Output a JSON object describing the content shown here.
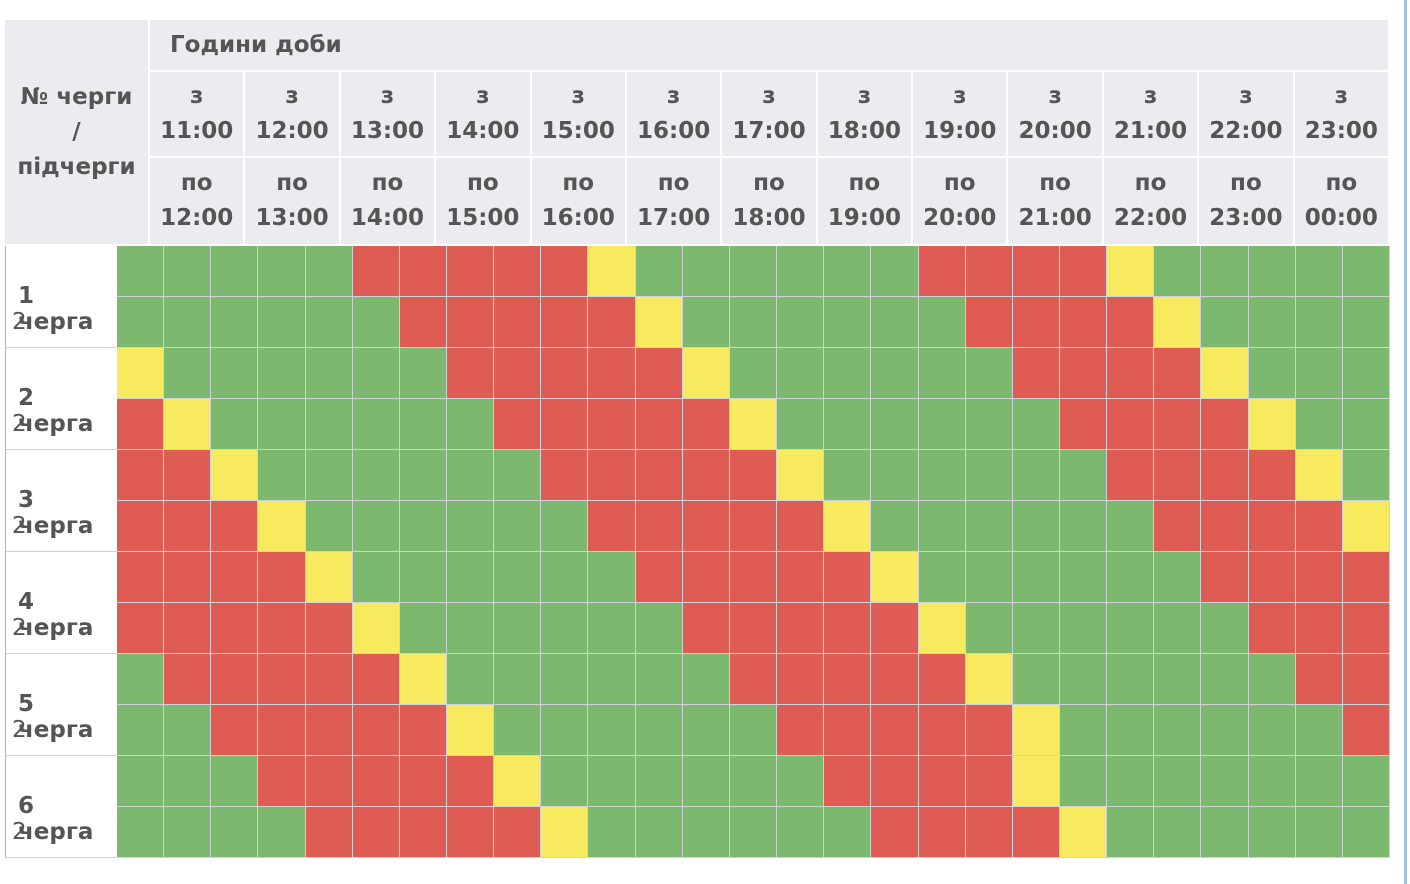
{
  "header": {
    "corner": [
      "№ черги",
      "/",
      "підчерги"
    ],
    "hours_title": "Години доби",
    "from_prefix": "з",
    "from_times": [
      "11:00",
      "12:00",
      "13:00",
      "14:00",
      "15:00",
      "16:00",
      "17:00",
      "18:00",
      "19:00",
      "20:00",
      "21:00",
      "22:00",
      "23:00"
    ],
    "to_prefix": "по",
    "to_times": [
      "12:00",
      "13:00",
      "14:00",
      "15:00",
      "16:00",
      "17:00",
      "18:00",
      "19:00",
      "20:00",
      "21:00",
      "22:00",
      "23:00",
      "00:00"
    ]
  },
  "status_colors": {
    "G": "#7cb86e",
    "R": "#df5c54",
    "Y": "#f8ea5f"
  },
  "queues": [
    {
      "label": "1 черга",
      "sublabel": "2",
      "rows": [
        "GGGGGRRRRRYGGGGGGRRRRYGGGGG",
        "GGGGGGRRRRRYGGGGGGRRRRYGGGG"
      ]
    },
    {
      "label": "2 черга",
      "sublabel": "2",
      "rows": [
        "YGGGGGGRRRRRYGGGGGGRRRRYGGG",
        "RYGGGGGGRRRRRYGGGGGGRRRRYGG"
      ]
    },
    {
      "label": "3 черга",
      "sublabel": "2",
      "rows": [
        "RRYGGGGGGRRRRRYGGGGGGRRRRYG",
        "RRRYGGGGGGRRRRRYGGGGGGRRRRY"
      ]
    },
    {
      "label": "4 черга",
      "sublabel": "2",
      "rows": [
        "RRRRYGGGGGGRRRRRYGGGGGGRRRR",
        "RRRRRYGGGGGGRRRRRYGGGGGGRRR"
      ]
    },
    {
      "label": "5 черга",
      "sublabel": "2",
      "rows": [
        "GRRRRRYGGGGGGRRRRRYGGGGGGRR",
        "GGRRRRRYGGGGGGRRRRRYGGGGGGR"
      ]
    },
    {
      "label": "6 черга",
      "sublabel": "2",
      "rows": [
        "GGGRRRRRYGGGGGGRRRRYGGGGGGG",
        "GGGGRRRRRYGGGGGGRRRRYGGGGGG"
      ]
    }
  ]
}
